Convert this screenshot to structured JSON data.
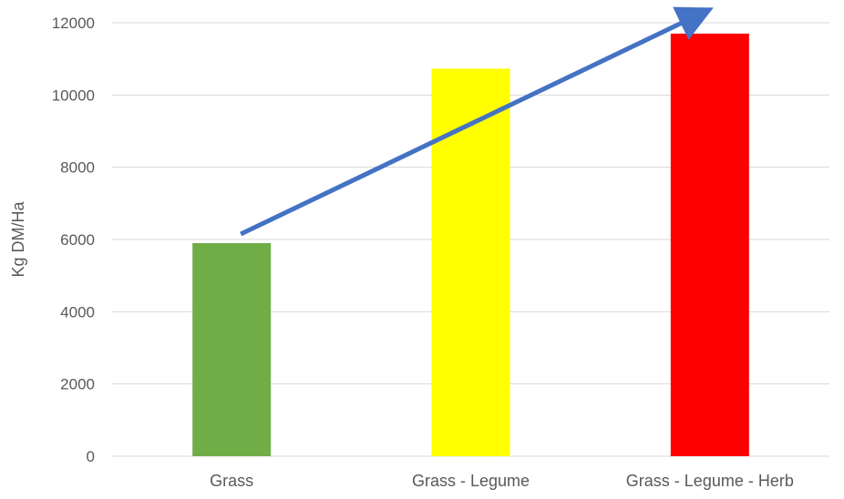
{
  "chart_data": {
    "type": "bar",
    "title": "",
    "xlabel": "",
    "ylabel": "Kg DM/Ha",
    "categories": [
      "Grass",
      "Grass - Legume",
      "Grass - Legume - Herb"
    ],
    "values": [
      5900,
      10730,
      11700
    ],
    "bar_colors": [
      "#70ad47",
      "#ffff00",
      "#ff0000"
    ],
    "ylim": [
      0,
      12000
    ],
    "yticks": [
      0,
      2000,
      4000,
      6000,
      8000,
      10000,
      12000
    ],
    "grid": true,
    "legend": "none",
    "annotations": [
      {
        "type": "trend-arrow",
        "from": {
          "category": "Grass",
          "y": 6150
        },
        "to": {
          "category": "Grass - Legume - Herb",
          "y": 12200
        },
        "color": "#4472c4"
      }
    ]
  }
}
